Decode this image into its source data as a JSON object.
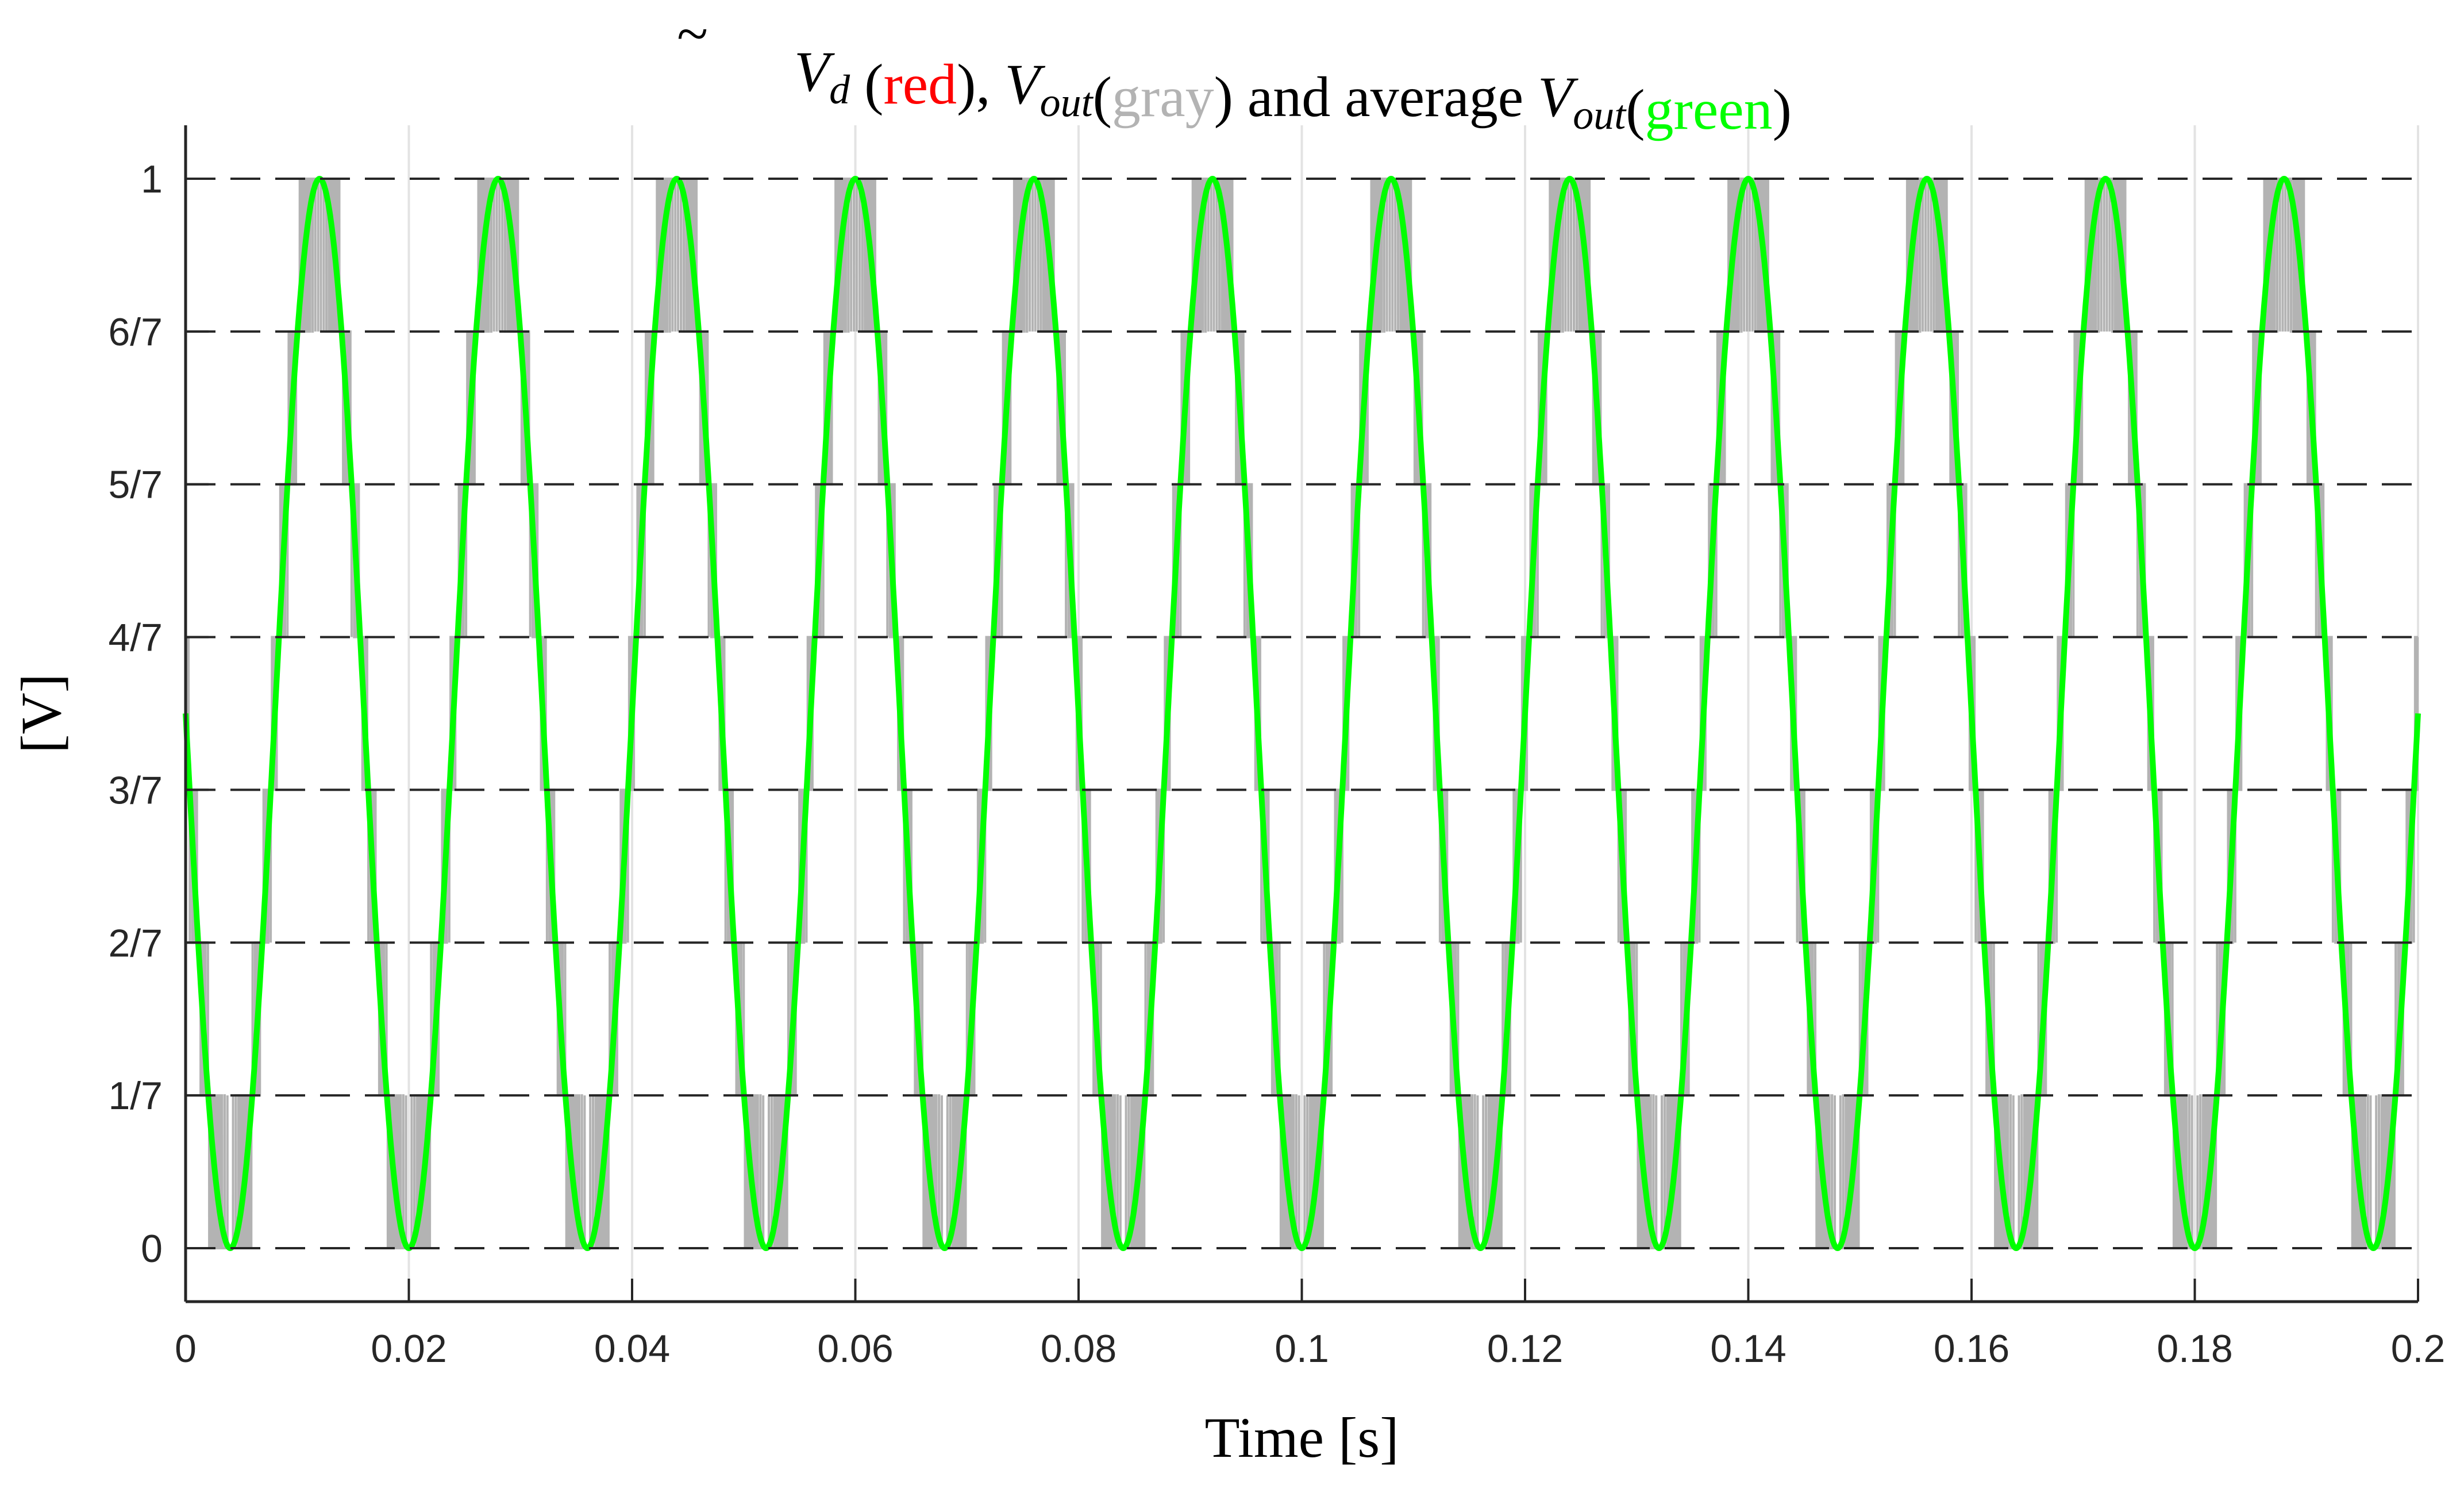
{
  "chart_data": {
    "type": "line",
    "title": {
      "parts": [
        {
          "text": "V",
          "style": "italic",
          "tilde": true
        },
        {
          "text": "d",
          "style": "sub-italic"
        },
        {
          "text": " (",
          "style": "normal"
        },
        {
          "text": "red",
          "style": "normal",
          "color_key": "red"
        },
        {
          "text": "), ",
          "style": "normal"
        },
        {
          "text": "V",
          "style": "italic"
        },
        {
          "text": "out",
          "style": "sub-italic"
        },
        {
          "text": "(",
          "style": "normal"
        },
        {
          "text": "gray",
          "style": "normal",
          "color_key": "gray"
        },
        {
          "text": ") and average ",
          "style": "normal"
        },
        {
          "text": "V",
          "style": "italic"
        },
        {
          "text": "out",
          "style": "sub-italic"
        },
        {
          "text": "(",
          "style": "normal"
        },
        {
          "text": "green",
          "style": "normal",
          "color_key": "green"
        },
        {
          "text": ")",
          "style": "normal"
        }
      ]
    },
    "xlabel": "Time [s]",
    "ylabel": "[V]",
    "xlim": [
      0,
      0.2
    ],
    "ylim": [
      -0.05,
      1.05
    ],
    "x_ticks": [
      0,
      0.02,
      0.04,
      0.06,
      0.08,
      0.1,
      0.12,
      0.14,
      0.16,
      0.18,
      0.2
    ],
    "x_tick_labels": [
      "0",
      "0.02",
      "0.04",
      "0.06",
      "0.08",
      "0.1",
      "0.12",
      "0.14",
      "0.16",
      "0.18",
      "0.2"
    ],
    "y_ticks": [
      0,
      0.142857,
      0.285714,
      0.428571,
      0.571429,
      0.714286,
      0.857143,
      1
    ],
    "y_tick_labels": [
      "0",
      "1/7",
      "2/7",
      "3/7",
      "4/7",
      "5/7",
      "6/7",
      "1"
    ],
    "grid": {
      "x": "solid-light",
      "y": "dashed"
    },
    "signal": {
      "frequency_hz": 62.5,
      "offset": 0.5,
      "amplitude": 0.5,
      "initial_value": 0.5
    },
    "series": [
      {
        "name": "Vd tilde",
        "color": "#ff0000",
        "description": "reference sinusoid"
      },
      {
        "name": "Vout",
        "color": "#b3b3b3",
        "description": "7-level PWM output"
      },
      {
        "name": "average Vout",
        "color": "#00ff00",
        "description": "averaged output sinusoid"
      }
    ],
    "colors": {
      "red": "#ff0000",
      "gray": "#b3b3b3",
      "green": "#00ff00"
    }
  }
}
